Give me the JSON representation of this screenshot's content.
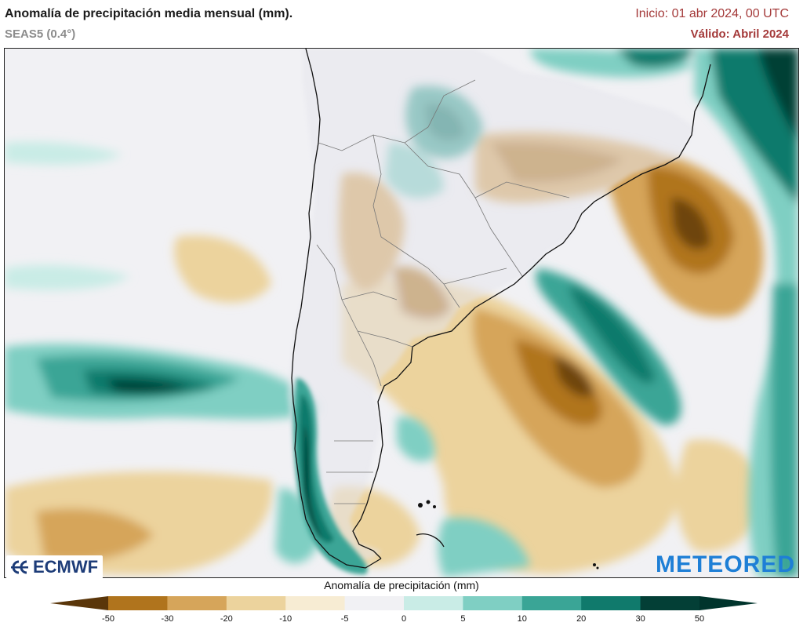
{
  "header": {
    "title": "Anomalía de precipitación media mensual (mm).",
    "model": "SEAS5 (0.4°)",
    "init": "Inicio: 01 abr 2024, 00 UTC",
    "valid": "Válido: Abril 2024"
  },
  "logos": {
    "left": "ECMWF",
    "right": "METEORED"
  },
  "legend": {
    "title": "Anomalía de precipitación (mm)",
    "ticks": [
      "-50",
      "-30",
      "-20",
      "-10",
      "-5",
      "0",
      "5",
      "10",
      "20",
      "30",
      "50"
    ],
    "colors": [
      "#6e4510",
      "#b0741d",
      "#d6a55a",
      "#ecd39d",
      "#f7ecd3",
      "#f1f1f4",
      "#c9ece6",
      "#7fcfc3",
      "#3aa596",
      "#107a6c",
      "#033f36",
      "#00342c"
    ],
    "min_arrow_color": "#5a360a",
    "max_arrow_color": "#00342c"
  }
}
